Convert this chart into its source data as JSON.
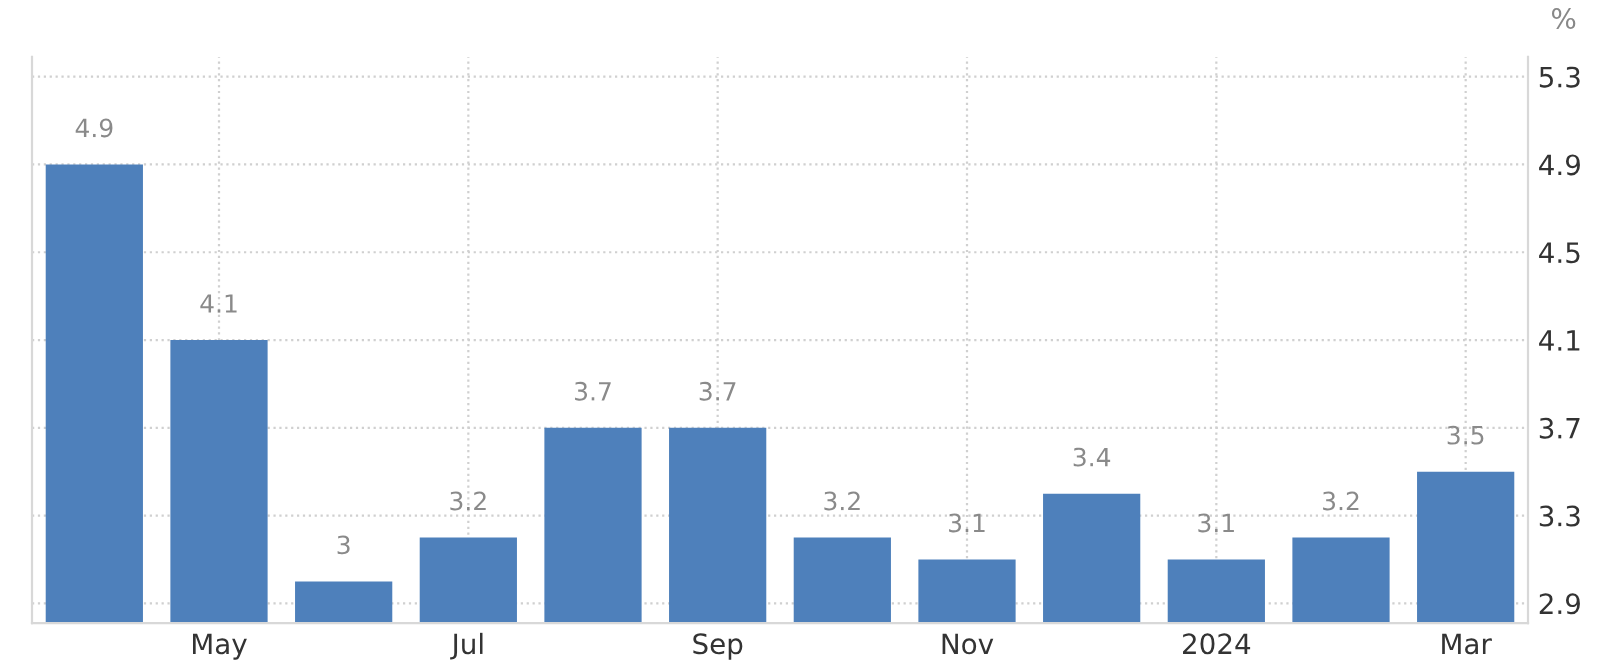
{
  "chart_data": {
    "type": "bar",
    "ylabel": "%",
    "categories": [
      null,
      "May",
      null,
      "Jul",
      null,
      "Sep",
      null,
      "Nov",
      null,
      "2024",
      null,
      "Mar"
    ],
    "values": [
      4.9,
      4.1,
      3.0,
      3.2,
      3.7,
      3.7,
      3.2,
      3.1,
      3.4,
      3.1,
      3.2,
      3.5
    ],
    "value_labels": [
      "4.9",
      "4.1",
      "3",
      "3.2",
      "3.7",
      "3.7",
      "3.2",
      "3.1",
      "3.4",
      "3.1",
      "3.2",
      "3.5"
    ],
    "color": "#4e80bb",
    "ylim": [
      2.81,
      5.39
    ],
    "yticks": [
      2.9,
      3.3,
      3.7,
      4.1,
      4.5,
      4.9,
      5.3
    ],
    "grid": true
  }
}
